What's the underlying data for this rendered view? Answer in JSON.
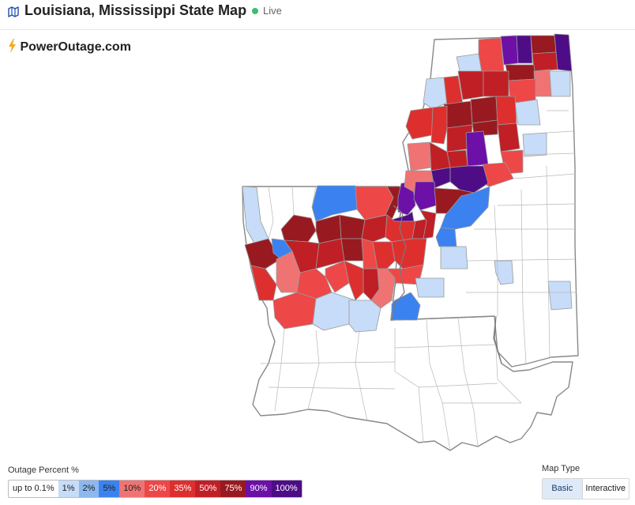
{
  "header": {
    "title": "Louisiana, Mississippi State Map",
    "live_label": "Live",
    "icon": "map-icon",
    "live_color": "#3bbf6b"
  },
  "brand": {
    "name": "PowerOutage.com",
    "icon": "lightning-bolt-icon",
    "icon_color": "#f2a91c"
  },
  "legend": {
    "title": "Outage Percent %",
    "items": [
      {
        "label": "up to 0.1%",
        "color": "#ffffff"
      },
      {
        "label": "1%",
        "color": "#c6dcf8"
      },
      {
        "label": "2%",
        "color": "#8cb8ef"
      },
      {
        "label": "5%",
        "color": "#3b82f0"
      },
      {
        "label": "10%",
        "color": "#f07373"
      },
      {
        "label": "20%",
        "color": "#ee4747"
      },
      {
        "label": "35%",
        "color": "#de2f2f"
      },
      {
        "label": "50%",
        "color": "#c01f26"
      },
      {
        "label": "75%",
        "color": "#981a20"
      },
      {
        "label": "90%",
        "color": "#6c10a7"
      },
      {
        "label": "100%",
        "color": "#4e0d86"
      }
    ]
  },
  "map_type": {
    "label": "Map Type",
    "options": [
      "Basic",
      "Interactive"
    ],
    "selected": "Basic"
  }
}
